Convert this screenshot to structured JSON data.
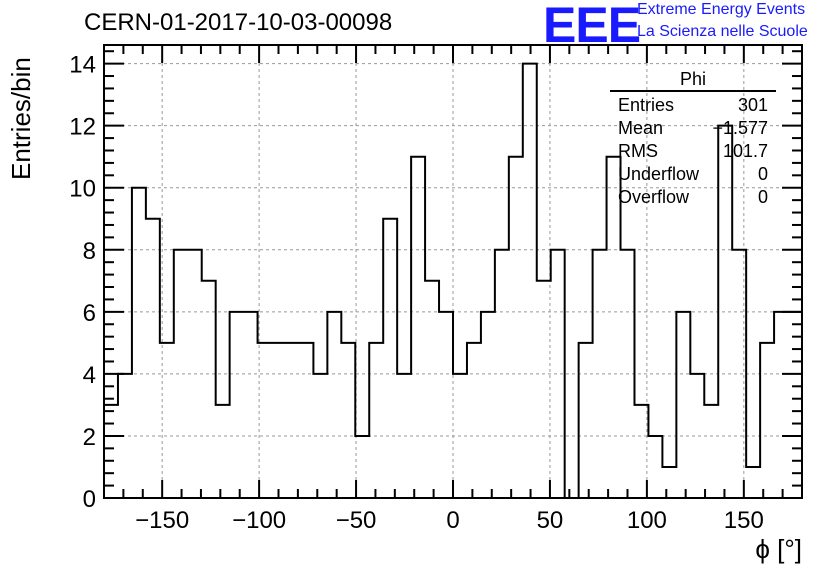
{
  "header": {
    "run_title": "CERN-01-2017-10-03-00098",
    "logo_text": "EEE",
    "logo_line1": "Extreme Energy Events",
    "logo_line2": "La Scienza nelle Scuole",
    "logo_color": "#1a1aff"
  },
  "stats": {
    "title": "Phi",
    "rows": [
      {
        "label": "Entries",
        "value": "301"
      },
      {
        "label": "Mean",
        "value": "−1.577"
      },
      {
        "label": "RMS",
        "value": "101.7"
      },
      {
        "label": "Underflow",
        "value": "0"
      },
      {
        "label": "Overflow",
        "value": "0"
      }
    ]
  },
  "chart_data": {
    "type": "histogram",
    "xlabel": "ϕ [°]",
    "ylabel": "Entries/bin",
    "xlim": [
      -180,
      180
    ],
    "ylim": [
      0,
      14.6
    ],
    "x_ticks": [
      -150,
      -100,
      -50,
      0,
      50,
      100,
      150
    ],
    "x_tick_labels": [
      "−150",
      "−100",
      "−50",
      "0",
      "50",
      "100",
      "150"
    ],
    "y_ticks": [
      0,
      2,
      4,
      6,
      8,
      10,
      12,
      14
    ],
    "y_tick_labels": [
      "0",
      "2",
      "4",
      "6",
      "8",
      "10",
      "12",
      "14"
    ],
    "grid": true,
    "line_color": "#000000",
    "bin_width": 7.2,
    "bin_edges_start": -180,
    "values": [
      3,
      4,
      10,
      9,
      5,
      8,
      8,
      7,
      3,
      6,
      6,
      5,
      5,
      5,
      5,
      4,
      6,
      5,
      2,
      5,
      9,
      4,
      11,
      7,
      6,
      4,
      5,
      6,
      8,
      11,
      14,
      7,
      8,
      0,
      5,
      8,
      11,
      8,
      3,
      2,
      1,
      6,
      4,
      3,
      12,
      8,
      1,
      5,
      6,
      6
    ]
  }
}
